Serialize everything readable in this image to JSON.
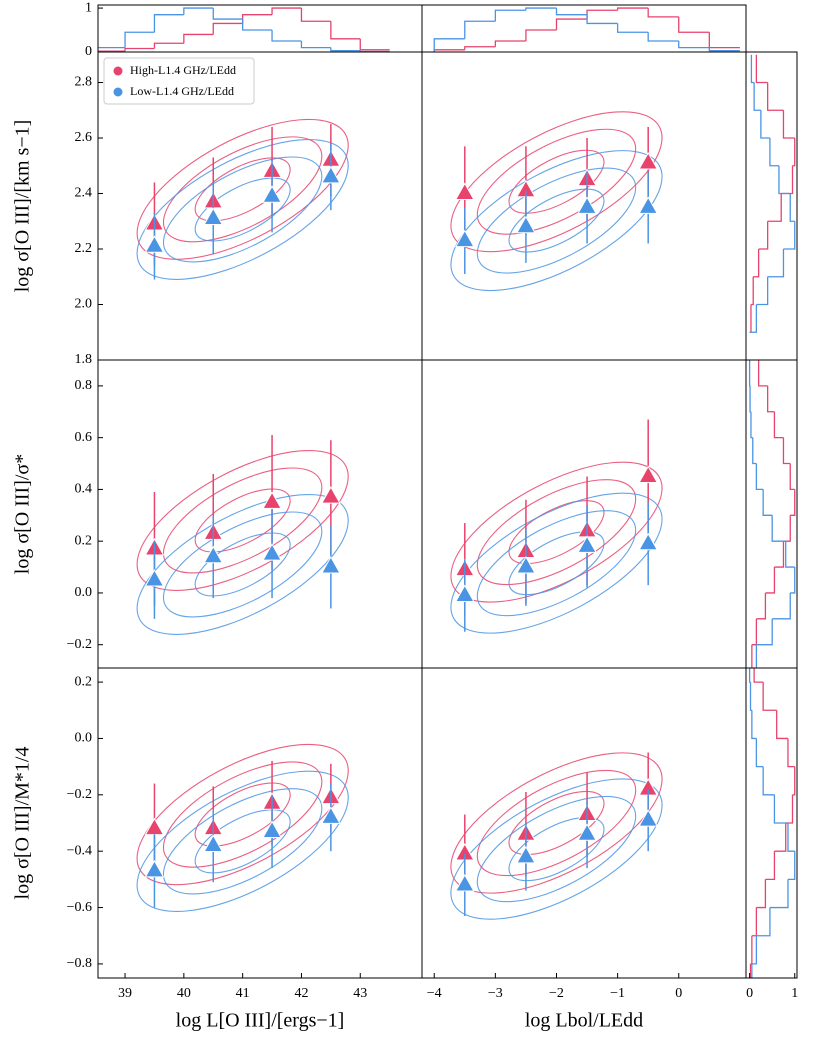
{
  "chart_data": [
    {
      "type": "scatter",
      "x": [
        39.5,
        40.5,
        41.5,
        42.5
      ],
      "xlim": [
        38.54,
        44.05
      ],
      "ylim": [
        1.8,
        2.91
      ],
      "yticks": [
        {
          "value": 1.8,
          "label": "1.8"
        },
        {
          "value": 2,
          "label": "2.0"
        },
        2.2,
        2.4,
        2.6,
        2.8
      ],
      "ylabel": "log σ[O III]/[km s−1]",
      "legend": "upper left",
      "series": [
        {
          "name": "High-L1.4 GHz/LEdd",
          "color": "#e8436c",
          "values": [
            2.29,
            2.37,
            2.48,
            2.52
          ],
          "errors": [
            0.15,
            0.16,
            0.16,
            0.13
          ]
        },
        {
          "name": "Low-L1.4 GHz/LEdd",
          "color": "#4a94e4",
          "values": [
            2.21,
            2.31,
            2.39,
            2.46
          ],
          "errors": [
            0.12,
            0.13,
            0.13,
            0.12
          ]
        }
      ]
    },
    {
      "type": "scatter",
      "x": [
        -3.5,
        -2.5,
        -1.5,
        -0.5
      ],
      "xlim": [
        -4.2,
        1.1
      ],
      "ylim": [
        1.8,
        2.91
      ],
      "series": [
        {
          "color": "#e8436c",
          "values": [
            2.4,
            2.41,
            2.45,
            2.51
          ],
          "errors": [
            0.17,
            0.16,
            0.15,
            0.13
          ]
        },
        {
          "color": "#4a94e4",
          "values": [
            2.23,
            2.28,
            2.35,
            2.35
          ],
          "errors": [
            0.12,
            0.13,
            0.13,
            0.13
          ]
        }
      ]
    },
    {
      "type": "scatter",
      "x": [
        39.5,
        40.5,
        41.5,
        42.5
      ],
      "xlim": [
        38.54,
        44.05
      ],
      "ylim": [
        -0.29,
        0.9
      ],
      "yticks": [
        {
          "value": -0.2,
          "label": "−0.2"
        },
        {
          "value": 0,
          "label": "0.0"
        },
        0.2,
        0.4,
        0.6,
        0.8
      ],
      "ylabel": "log σ[O III]/σ*",
      "series": [
        {
          "color": "#e8436c",
          "values": [
            0.17,
            0.23,
            0.35,
            0.37
          ],
          "errors": [
            0.22,
            0.23,
            0.26,
            0.22
          ]
        },
        {
          "color": "#4a94e4",
          "values": [
            0.05,
            0.14,
            0.15,
            0.1
          ],
          "errors": [
            0.15,
            0.16,
            0.17,
            0.16
          ]
        }
      ]
    },
    {
      "type": "scatter",
      "x": [
        -3.5,
        -2.5,
        -1.5,
        -0.5
      ],
      "xlim": [
        -4.2,
        1.1
      ],
      "ylim": [
        -0.29,
        0.9
      ],
      "series": [
        {
          "color": "#e8436c",
          "values": [
            0.09,
            0.16,
            0.24,
            0.45
          ],
          "errors": [
            0.18,
            0.2,
            0.21,
            0.22
          ]
        },
        {
          "color": "#4a94e4",
          "values": [
            -0.01,
            0.1,
            0.18,
            0.19
          ],
          "errors": [
            0.14,
            0.15,
            0.16,
            0.16
          ]
        }
      ]
    },
    {
      "type": "scatter",
      "x": [
        39.5,
        40.5,
        41.5,
        42.5
      ],
      "xlim": [
        38.54,
        44.05
      ],
      "ylim": [
        -0.85,
        0.25
      ],
      "xticks": [
        39,
        40,
        41,
        42,
        43
      ],
      "yticks": [
        {
          "value": -0.8,
          "label": "−0.8"
        },
        {
          "value": -0.6,
          "label": "−0.6"
        },
        {
          "value": -0.4,
          "label": "−0.4"
        },
        {
          "value": -0.2,
          "label": "−0.2"
        },
        {
          "value": 0,
          "label": "0.0"
        },
        0.2
      ],
      "xlabel": "log L[O III]/[ergs−1]",
      "ylabel": "log σ[O III]/M*1/4",
      "series": [
        {
          "color": "#e8436c",
          "values": [
            -0.32,
            -0.32,
            -0.23,
            -0.21
          ],
          "errors": [
            0.16,
            0.15,
            0.15,
            0.12
          ]
        },
        {
          "color": "#4a94e4",
          "values": [
            -0.47,
            -0.38,
            -0.33,
            -0.28
          ],
          "errors": [
            0.13,
            0.13,
            0.13,
            0.12
          ]
        }
      ]
    },
    {
      "type": "scatter",
      "x": [
        -3.5,
        -2.5,
        -1.5,
        -0.5
      ],
      "xlim": [
        -4.2,
        1.1
      ],
      "ylim": [
        -0.85,
        0.25
      ],
      "xticks": [
        {
          "value": -4,
          "label": "−4"
        },
        {
          "value": -3,
          "label": "−3"
        },
        {
          "value": -2,
          "label": "−2"
        },
        {
          "value": -1,
          "label": "−1"
        },
        0
      ],
      "xlabel": "log Lbol/LEdd",
      "series": [
        {
          "color": "#e8436c",
          "values": [
            -0.41,
            -0.34,
            -0.27,
            -0.18
          ],
          "errors": [
            0.14,
            0.15,
            0.15,
            0.13
          ]
        },
        {
          "color": "#4a94e4",
          "values": [
            -0.52,
            -0.42,
            -0.34,
            -0.29
          ],
          "errors": [
            0.11,
            0.12,
            0.12,
            0.11
          ]
        }
      ]
    },
    {
      "type": "histogram",
      "orientation": "vertical",
      "xlim": [
        38.54,
        44.05
      ],
      "ylim": [
        0,
        1.07
      ],
      "yticks": [
        0,
        1
      ],
      "bins": [
        38.5,
        39,
        39.5,
        40,
        40.5,
        41,
        41.5,
        42,
        42.5,
        43,
        43.5
      ],
      "series": [
        {
          "color": "#e8436c",
          "values": [
            0.02,
            0.08,
            0.2,
            0.4,
            0.65,
            0.85,
            1.0,
            0.7,
            0.3,
            0.05
          ]
        },
        {
          "color": "#4a94e4",
          "values": [
            0.1,
            0.45,
            0.85,
            1.0,
            0.75,
            0.5,
            0.25,
            0.1,
            0.03,
            0.01
          ]
        }
      ]
    },
    {
      "type": "histogram",
      "orientation": "vertical",
      "xlim": [
        -4.2,
        1.1
      ],
      "ylim": [
        0,
        1.07
      ],
      "bins": [
        -4,
        -3.5,
        -3,
        -2.5,
        -2,
        -1.5,
        -1,
        -0.5,
        0,
        0.5,
        1
      ],
      "series": [
        {
          "color": "#e8436c",
          "values": [
            0.05,
            0.12,
            0.25,
            0.5,
            0.75,
            0.95,
            1.0,
            0.8,
            0.45,
            0.1
          ]
        },
        {
          "color": "#4a94e4",
          "values": [
            0.3,
            0.7,
            0.95,
            1.0,
            0.85,
            0.65,
            0.45,
            0.25,
            0.1,
            0.03
          ]
        }
      ]
    },
    {
      "type": "histogram",
      "orientation": "horizontal",
      "xlim": [
        -0.08,
        1.05
      ],
      "ylim": [
        1.8,
        2.91
      ],
      "bins": [
        1.9,
        2,
        2.1,
        2.2,
        2.3,
        2.4,
        2.5,
        2.6,
        2.7,
        2.8,
        2.9
      ],
      "series": [
        {
          "color": "#e8436c",
          "values": [
            0.03,
            0.08,
            0.2,
            0.4,
            0.7,
            0.95,
            1.0,
            0.75,
            0.4,
            0.15
          ]
        },
        {
          "color": "#4a94e4",
          "values": [
            0.15,
            0.4,
            0.75,
            1.0,
            0.9,
            0.65,
            0.45,
            0.25,
            0.1,
            0.04
          ]
        }
      ]
    },
    {
      "type": "histogram",
      "orientation": "horizontal",
      "xlim": [
        -0.08,
        1.05
      ],
      "ylim": [
        -0.29,
        0.9
      ],
      "bins": [
        -0.3,
        -0.2,
        -0.1,
        0,
        0.1,
        0.2,
        0.3,
        0.4,
        0.5,
        0.6,
        0.7,
        0.8,
        0.9
      ],
      "series": [
        {
          "color": "#e8436c",
          "values": [
            0.05,
            0.15,
            0.35,
            0.55,
            0.75,
            0.9,
            1.0,
            0.9,
            0.75,
            0.55,
            0.4,
            0.2
          ]
        },
        {
          "color": "#4a94e4",
          "values": [
            0.15,
            0.5,
            0.9,
            1.0,
            0.8,
            0.5,
            0.3,
            0.15,
            0.07,
            0.03,
            0.01,
            0
          ]
        }
      ]
    },
    {
      "type": "histogram",
      "orientation": "horizontal",
      "xlim": [
        -0.08,
        1.05
      ],
      "ylim": [
        -0.85,
        0.25
      ],
      "xticks": [
        0,
        1
      ],
      "bins": [
        -0.9,
        -0.8,
        -0.7,
        -0.6,
        -0.5,
        -0.4,
        -0.3,
        -0.2,
        -0.1,
        0,
        0.1,
        0.2,
        0.3
      ],
      "series": [
        {
          "color": "#e8436c",
          "values": [
            0.02,
            0.05,
            0.15,
            0.35,
            0.55,
            0.8,
            0.95,
            1.0,
            0.85,
            0.6,
            0.3,
            0.1
          ]
        },
        {
          "color": "#4a94e4",
          "values": [
            0.05,
            0.15,
            0.45,
            0.85,
            1.0,
            0.85,
            0.55,
            0.3,
            0.15,
            0.05,
            0.02,
            0
          ]
        }
      ]
    }
  ]
}
